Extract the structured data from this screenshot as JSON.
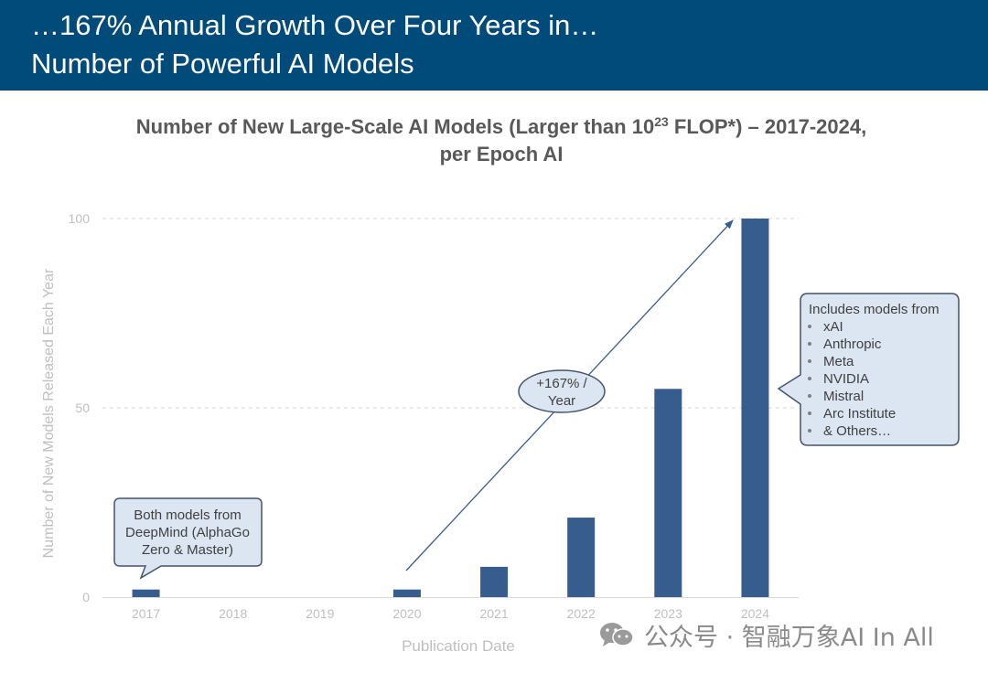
{
  "header": {
    "title_line1": "…167% Annual Growth Over Four Years in…",
    "title_line2": "Number of Powerful AI Models"
  },
  "colors": {
    "header_bg": "#004b79",
    "bar": "#375c8e",
    "callout_fill": "#dce6f2",
    "callout_stroke": "#44546a",
    "trend_line": "#375c8e"
  },
  "chart_data": {
    "type": "bar",
    "title_main": "Number of New Large-Scale AI Models (Larger than 10",
    "title_sup": "23",
    "title_tail": " FLOP*) – 2017-2024,",
    "title_line2": "per Epoch AI",
    "xlabel": "Publication Date",
    "ylabel": "Number of New Models Released Each Year",
    "categories": [
      "2017",
      "2018",
      "2019",
      "2020",
      "2021",
      "2022",
      "2023",
      "2024"
    ],
    "values": [
      2,
      0,
      0,
      2,
      8,
      21,
      55,
      100
    ],
    "ylim": [
      0,
      100
    ],
    "yticks": [
      "0",
      "50",
      "100"
    ],
    "ytick_values": [
      0,
      50,
      100
    ],
    "grid": "horizontal dashed",
    "annotations": {
      "callout_2017": {
        "lines": [
          "Both models from",
          "DeepMind (AlphaGo",
          "Zero & Master)"
        ]
      },
      "trend_label": {
        "lines": [
          "+167% /",
          "Year"
        ]
      },
      "callout_2024": {
        "header": "Includes models from",
        "items": [
          "xAI",
          "Anthropic",
          "Meta",
          "NVIDIA",
          "Mistral",
          "Arc Institute",
          "& Others…"
        ]
      }
    }
  },
  "watermark": {
    "text": "公众号 · 智融万象AI In All",
    "icon": "wechat-icon"
  }
}
